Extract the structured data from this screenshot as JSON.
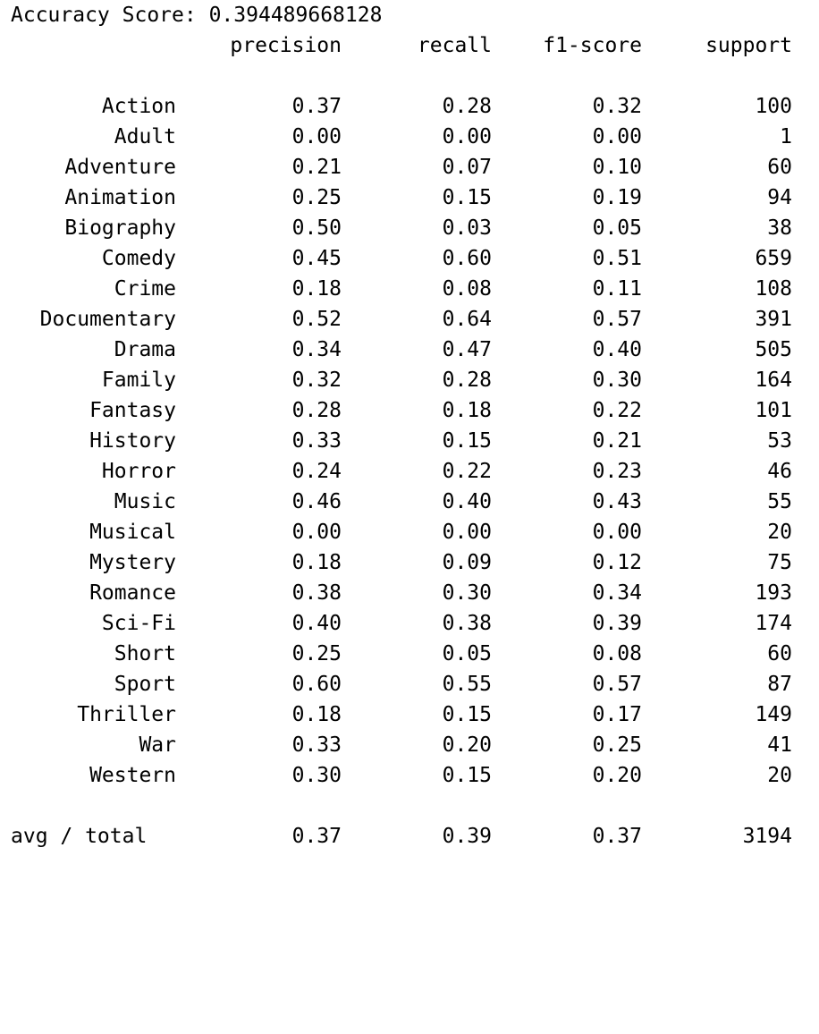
{
  "accuracy": {
    "label": "Accuracy Score:",
    "value": "0.394489668128"
  },
  "header": [
    "precision",
    "recall",
    "f1-score",
    "support"
  ],
  "rows": [
    {
      "label": "Action",
      "precision": "0.37",
      "recall": "0.28",
      "f1": "0.32",
      "support": "100"
    },
    {
      "label": "Adult",
      "precision": "0.00",
      "recall": "0.00",
      "f1": "0.00",
      "support": "1"
    },
    {
      "label": "Adventure",
      "precision": "0.21",
      "recall": "0.07",
      "f1": "0.10",
      "support": "60"
    },
    {
      "label": "Animation",
      "precision": "0.25",
      "recall": "0.15",
      "f1": "0.19",
      "support": "94"
    },
    {
      "label": "Biography",
      "precision": "0.50",
      "recall": "0.03",
      "f1": "0.05",
      "support": "38"
    },
    {
      "label": "Comedy",
      "precision": "0.45",
      "recall": "0.60",
      "f1": "0.51",
      "support": "659"
    },
    {
      "label": "Crime",
      "precision": "0.18",
      "recall": "0.08",
      "f1": "0.11",
      "support": "108"
    },
    {
      "label": "Documentary",
      "precision": "0.52",
      "recall": "0.64",
      "f1": "0.57",
      "support": "391"
    },
    {
      "label": "Drama",
      "precision": "0.34",
      "recall": "0.47",
      "f1": "0.40",
      "support": "505"
    },
    {
      "label": "Family",
      "precision": "0.32",
      "recall": "0.28",
      "f1": "0.30",
      "support": "164"
    },
    {
      "label": "Fantasy",
      "precision": "0.28",
      "recall": "0.18",
      "f1": "0.22",
      "support": "101"
    },
    {
      "label": "History",
      "precision": "0.33",
      "recall": "0.15",
      "f1": "0.21",
      "support": "53"
    },
    {
      "label": "Horror",
      "precision": "0.24",
      "recall": "0.22",
      "f1": "0.23",
      "support": "46"
    },
    {
      "label": "Music",
      "precision": "0.46",
      "recall": "0.40",
      "f1": "0.43",
      "support": "55"
    },
    {
      "label": "Musical",
      "precision": "0.00",
      "recall": "0.00",
      "f1": "0.00",
      "support": "20"
    },
    {
      "label": "Mystery",
      "precision": "0.18",
      "recall": "0.09",
      "f1": "0.12",
      "support": "75"
    },
    {
      "label": "Romance",
      "precision": "0.38",
      "recall": "0.30",
      "f1": "0.34",
      "support": "193"
    },
    {
      "label": "Sci-Fi",
      "precision": "0.40",
      "recall": "0.38",
      "f1": "0.39",
      "support": "174"
    },
    {
      "label": "Short",
      "precision": "0.25",
      "recall": "0.05",
      "f1": "0.08",
      "support": "60"
    },
    {
      "label": "Sport",
      "precision": "0.60",
      "recall": "0.55",
      "f1": "0.57",
      "support": "87"
    },
    {
      "label": "Thriller",
      "precision": "0.18",
      "recall": "0.15",
      "f1": "0.17",
      "support": "149"
    },
    {
      "label": "War",
      "precision": "0.33",
      "recall": "0.20",
      "f1": "0.25",
      "support": "41"
    },
    {
      "label": "Western",
      "precision": "0.30",
      "recall": "0.15",
      "f1": "0.20",
      "support": "20"
    }
  ],
  "total": {
    "label": "avg / total",
    "precision": "0.37",
    "recall": "0.39",
    "f1": "0.37",
    "support": "3194"
  }
}
